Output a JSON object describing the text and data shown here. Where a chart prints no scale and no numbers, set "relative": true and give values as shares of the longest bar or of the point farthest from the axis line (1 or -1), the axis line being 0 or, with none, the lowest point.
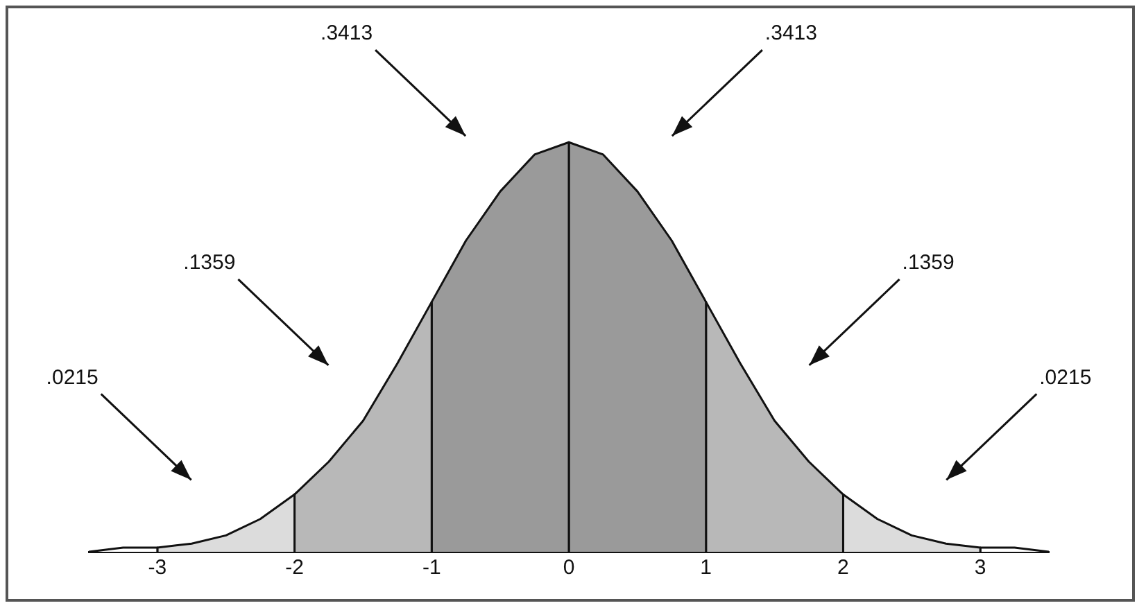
{
  "chart_data": {
    "type": "area",
    "relative": true,
    "tick_labels": "x",
    "xlim": [
      -3.5,
      3.5
    ],
    "xticks": [
      -3,
      -2,
      -1,
      0,
      1,
      2,
      3
    ],
    "series": [
      {
        "color": "#ffffff",
        "x": [
          -3.5,
          -3.25,
          -3,
          -3
        ],
        "values": [
          0,
          0.01,
          0.01,
          0
        ]
      },
      {
        "color": "#dcdcdc",
        "x": [
          -3,
          -3,
          -2.75,
          -2.5,
          -2.25,
          -2,
          -2
        ],
        "values": [
          0,
          0.01,
          0.02,
          0.04,
          0.08,
          0.14,
          0
        ]
      },
      {
        "color": "#b8b8b8",
        "x": [
          -2,
          -2,
          -1.75,
          -1.5,
          -1.25,
          -1,
          -1
        ],
        "values": [
          0,
          0.14,
          0.22,
          0.32,
          0.46,
          0.61,
          0
        ]
      },
      {
        "color": "#9a9a9a",
        "x": [
          -1,
          -1,
          -0.75,
          -0.5,
          -0.25,
          0,
          0
        ],
        "values": [
          0,
          0.61,
          0.76,
          0.88,
          0.97,
          1,
          0
        ]
      },
      {
        "color": "#9a9a9a",
        "x": [
          0,
          0,
          0.25,
          0.5,
          0.75,
          1,
          1
        ],
        "values": [
          0,
          1,
          0.97,
          0.88,
          0.76,
          0.61,
          0
        ]
      },
      {
        "color": "#b8b8b8",
        "x": [
          1,
          1,
          1.25,
          1.5,
          1.75,
          2,
          2
        ],
        "values": [
          0,
          0.61,
          0.46,
          0.32,
          0.22,
          0.14,
          0
        ]
      },
      {
        "color": "#dcdcdc",
        "x": [
          2,
          2,
          2.25,
          2.5,
          2.75,
          3,
          3
        ],
        "values": [
          0,
          0.14,
          0.08,
          0.04,
          0.02,
          0.01,
          0
        ]
      },
      {
        "color": "#ffffff",
        "x": [
          3,
          3,
          3.25,
          3.5
        ],
        "values": [
          0,
          0.01,
          0.01,
          0
        ]
      }
    ],
    "annotations": [
      ".0215",
      ".1359",
      ".3413",
      ".3413",
      ".1359",
      ".0215"
    ]
  }
}
